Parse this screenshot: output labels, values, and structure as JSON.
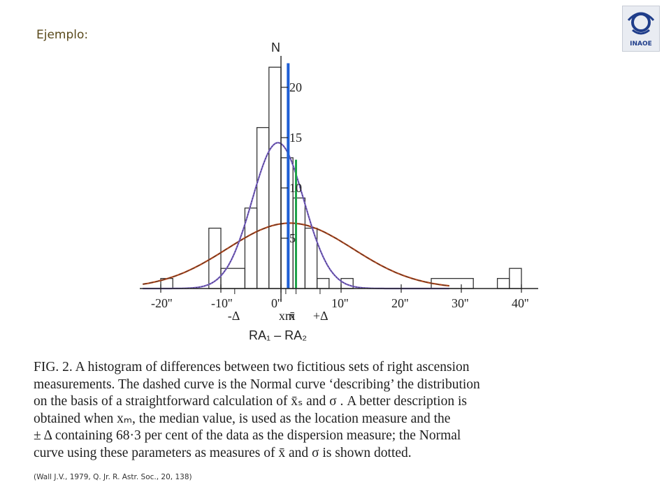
{
  "slide": {
    "title": "Ejemplo:"
  },
  "logo": {
    "text": "INAOE"
  },
  "chart_data": {
    "type": "bar",
    "y_axis_title": "N",
    "x_axis_title": "RA₁ – RA₂",
    "x_ticks": [
      {
        "value": -20,
        "label": "-20''"
      },
      {
        "value": -10,
        "label": "-10''"
      },
      {
        "value": 0,
        "label": "0''"
      },
      {
        "value": 10,
        "label": "10''"
      },
      {
        "value": 20,
        "label": "20''"
      },
      {
        "value": 30,
        "label": "30''"
      },
      {
        "value": 40,
        "label": "40''"
      }
    ],
    "y_ticks": [
      {
        "value": 5,
        "label": "5"
      },
      {
        "value": 10,
        "label": "10"
      },
      {
        "value": 15,
        "label": "15"
      },
      {
        "value": 20,
        "label": "20"
      }
    ],
    "xlim": [
      -25,
      42
    ],
    "ylim": [
      0,
      24
    ],
    "histogram": [
      {
        "x0": -20,
        "x1": -18,
        "count": 1
      },
      {
        "x0": -12,
        "x1": -10,
        "count": 6
      },
      {
        "x0": -10,
        "x1": -6,
        "count": 2
      },
      {
        "x0": -6,
        "x1": -4,
        "count": 8
      },
      {
        "x0": -4,
        "x1": -2,
        "count": 16
      },
      {
        "x0": -2,
        "x1": 0,
        "count": 22
      },
      {
        "x0": 0,
        "x1": 2,
        "count": 13
      },
      {
        "x0": 2,
        "x1": 4,
        "count": 9
      },
      {
        "x0": 4,
        "x1": 6,
        "count": 6
      },
      {
        "x0": 6,
        "x1": 8,
        "count": 1
      },
      {
        "x0": 8,
        "x1": 10,
        "count": 0
      },
      {
        "x0": 10,
        "x1": 12,
        "count": 1
      },
      {
        "x0": 25,
        "x1": 32,
        "count": 1
      },
      {
        "x0": 36,
        "x1": 38,
        "count": 1
      },
      {
        "x0": 38,
        "x1": 40,
        "count": 2
      }
    ],
    "median": 1.2,
    "mean": 2.5,
    "markers": [
      {
        "label": "-Δ",
        "x": -7
      },
      {
        "label": "xm",
        "x": 1.5
      },
      {
        "label": "x̄",
        "x": 3.2
      },
      {
        "label": "+Δ",
        "x": 7.2
      }
    ],
    "curves": [
      {
        "name": "dashed",
        "mean": 1.5,
        "sigma": 10.5,
        "peak": 6.5,
        "color": "#b0481e"
      },
      {
        "name": "dotted",
        "mean": -0.5,
        "sigma": 4.3,
        "peak": 14.5,
        "color": "#7a62c9"
      }
    ],
    "colors": {
      "median_line": "#1f5fd6",
      "mean_line": "#1fa34b",
      "axes": "#222222"
    }
  },
  "caption": {
    "lines": [
      "FIG. 2. A histogram of differences between two fictitious sets of right ascension",
      "measurements. The dashed curve is the Normal curve ‘describing’ the distribution",
      "on the basis of a straightforward calculation of x̄ₛ and σ . A better description is",
      "obtained when xₘ, the median value, is used as the location measure and the",
      "± Δ containing 68·3 per cent of the data as the dispersion measure; the Normal",
      "curve using these parameters as measures of x̄ and σ is shown dotted."
    ]
  },
  "citation": "(Wall J.V., 1979, Q. Jr. R. Astr. Soc., 20, 138)"
}
